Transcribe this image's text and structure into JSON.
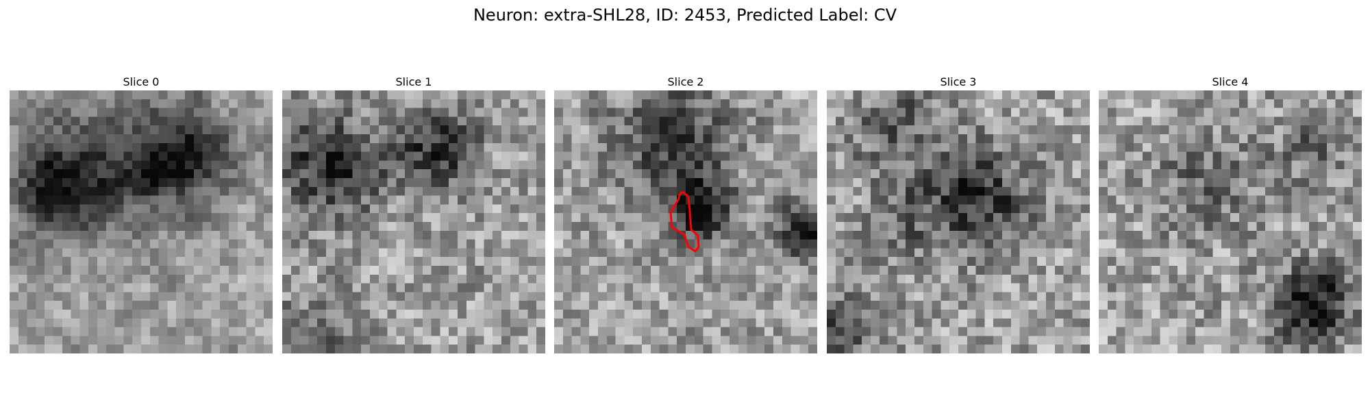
{
  "title": "Neuron: extra-SHL28, ID: 2453, Predicted Label: CV",
  "slices": [
    {
      "label": "Slice 0"
    },
    {
      "label": "Slice 1"
    },
    {
      "label": "Slice 2"
    },
    {
      "label": "Slice 3"
    },
    {
      "label": "Slice 4"
    }
  ],
  "colors": {
    "outline": "#ff0000"
  }
}
